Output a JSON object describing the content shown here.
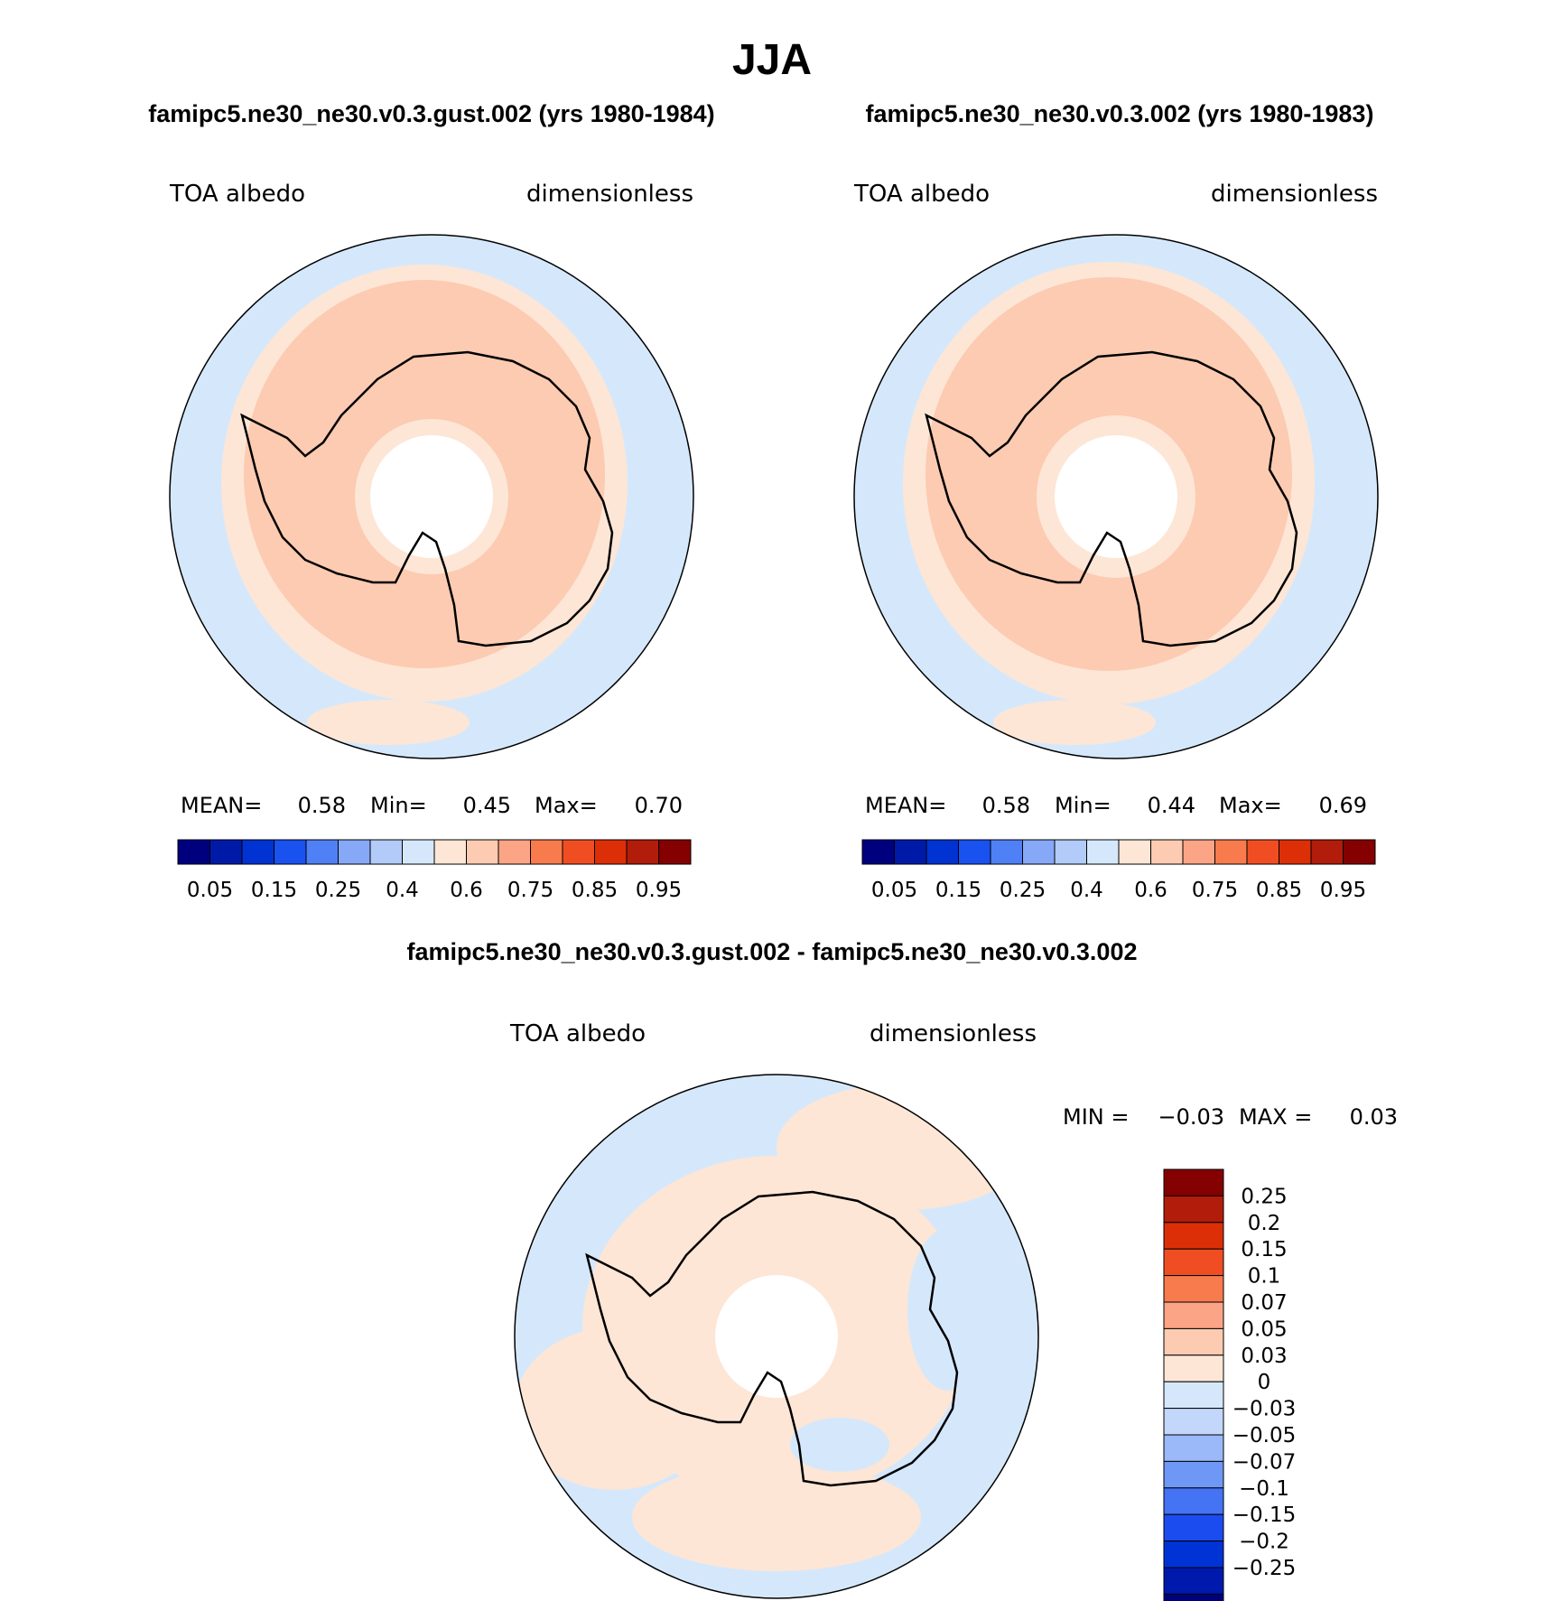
{
  "title": "JJA",
  "colors": {
    "land_outline": "#000000",
    "missing": "#ffffff"
  },
  "panels": [
    {
      "id": "panel1",
      "case_title": "famipc5.ne30_ne30.v0.3.gust.002 (yrs 1980-1984)",
      "left_label": "TOA albedo",
      "right_label": "dimensionless",
      "stats": {
        "mean_label": "MEAN=",
        "mean": "0.58",
        "min_label": "Min=",
        "min": "0.45",
        "max_label": "Max=",
        "max": "0.70"
      },
      "fill_levels": [
        "#fde6d6",
        "#fccbb1"
      ]
    },
    {
      "id": "panel2",
      "case_title": "famipc5.ne30_ne30.v0.3.002 (yrs 1980-1983)",
      "left_label": "TOA albedo",
      "right_label": "dimensionless",
      "stats": {
        "mean_label": "MEAN=",
        "mean": "0.58",
        "min_label": "Min=",
        "min": "0.44",
        "max_label": "Max=",
        "max": "0.69"
      },
      "fill_levels": [
        "#fde6d6",
        "#fccbb1"
      ]
    },
    {
      "id": "panel3",
      "case_title": "famipc5.ne30_ne30.v0.3.gust.002 - famipc5.ne30_ne30.v0.3.002",
      "left_label": "TOA albedo",
      "right_label": "dimensionless",
      "stats": {
        "min_label": "MIN =",
        "min": "−0.03",
        "max_label": "MAX =",
        "max": "0.03"
      },
      "fill_levels": [
        "#d5e8fb",
        "#fde6d6"
      ]
    }
  ],
  "colorbar_abs": {
    "colors": [
      "#00007f",
      "#001aa8",
      "#0033d1",
      "#1a52f0",
      "#4f80f5",
      "#86a8f7",
      "#b2cbf8",
      "#d5e8fb",
      "#fde6d6",
      "#fccbb1",
      "#fba586",
      "#f77b4d",
      "#f04e22",
      "#dc2f08",
      "#b21d0b",
      "#850000"
    ],
    "labels": [
      "0.05",
      "0.15",
      "0.25",
      "0.4",
      "0.6",
      "0.75",
      "0.85",
      "0.95"
    ]
  },
  "colorbar_diff": {
    "colors": [
      "#00007f",
      "#0019ad",
      "#0033d6",
      "#1a4cf0",
      "#4473f3",
      "#6f97f6",
      "#9bb9f8",
      "#c2d7fa",
      "#d5e8fb",
      "#fde6d6",
      "#fccbb1",
      "#fba586",
      "#f77b4d",
      "#f04e22",
      "#dc2f08",
      "#b21d0b",
      "#850000"
    ],
    "labels": [
      "0.25",
      "0.2",
      "0.15",
      "0.1",
      "0.07",
      "0.05",
      "0.03",
      "0",
      "−0.03",
      "−0.05",
      "−0.07",
      "−0.1",
      "−0.15",
      "−0.2",
      "−0.25"
    ]
  }
}
